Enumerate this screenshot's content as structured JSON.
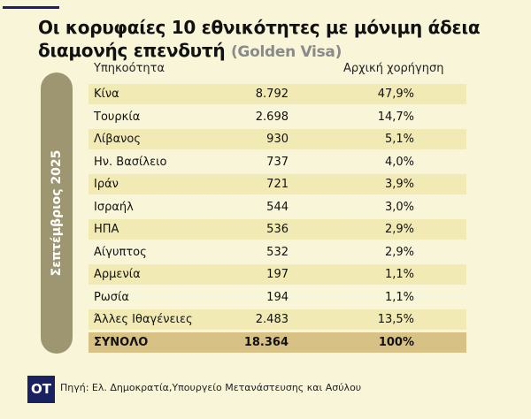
{
  "title": {
    "main": "Οι κορυφαίες 10 εθνικότητες με μόνιμη άδεια διαμονής επενδυτή",
    "sub": "(Golden Visa)"
  },
  "side_label": "Σεπτέμβριος 2025",
  "table": {
    "headers": [
      "Υπηκοότητα",
      "Αρχική χορήγηση"
    ],
    "rows": [
      {
        "name": "Κίνα",
        "value": "8.792",
        "pct": "47,9%"
      },
      {
        "name": "Τουρκία",
        "value": "2.698",
        "pct": "14,7%"
      },
      {
        "name": "Λίβανος",
        "value": "930",
        "pct": "5,1%"
      },
      {
        "name": "Ην. Βασίλειο",
        "value": "737",
        "pct": "4,0%"
      },
      {
        "name": "Ιράν",
        "value": "721",
        "pct": "3,9%"
      },
      {
        "name": "Ισραήλ",
        "value": "544",
        "pct": "3,0%"
      },
      {
        "name": "ΗΠΑ",
        "value": "536",
        "pct": "2,9%"
      },
      {
        "name": "Αίγυπτος",
        "value": "532",
        "pct": "2,9%"
      },
      {
        "name": "Αρμενία",
        "value": "197",
        "pct": "1,1%"
      },
      {
        "name": "Ρωσία",
        "value": "194",
        "pct": "1,1%"
      },
      {
        "name": "Άλλες Ιθαγένειες",
        "value": "2.483",
        "pct": "13,5%"
      }
    ],
    "total": {
      "name": "ΣΥΝΟΛΟ",
      "value": "18.364",
      "pct": "100%"
    }
  },
  "footer": {
    "logo": "OT",
    "source": "Πηγή: Ελ. Δημοκρατία,Υπουργείο Μετανάστευσης και Ασύλου"
  },
  "colors": {
    "background": "#f8f5d8",
    "highlight_row": "#f2eab4",
    "total_row": "#d8c185",
    "pill": "#9d9670",
    "logo": "#1a2160"
  }
}
